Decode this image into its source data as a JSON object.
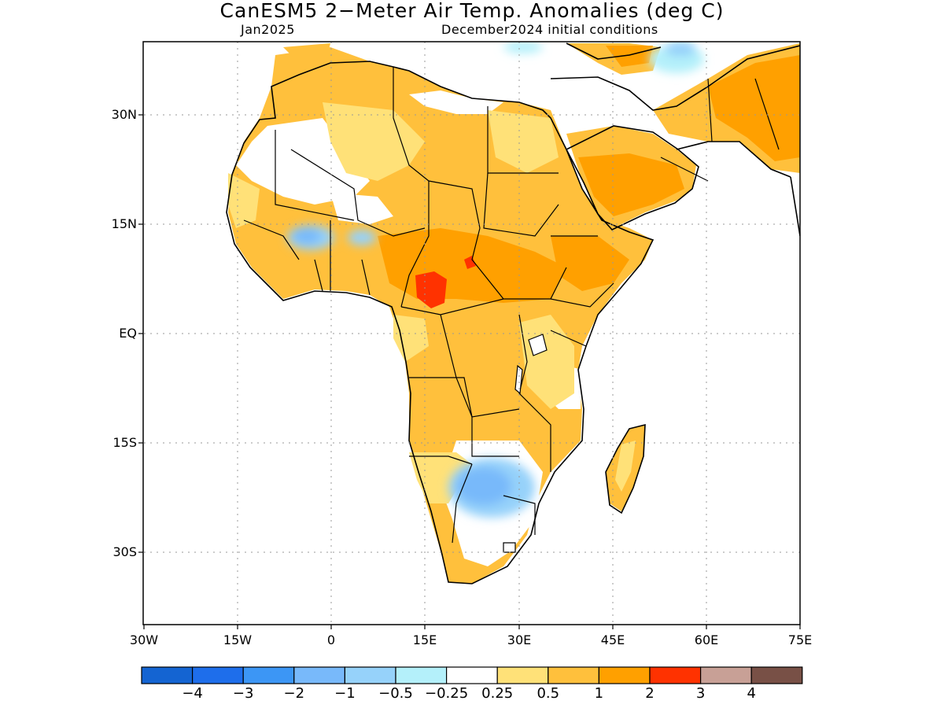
{
  "title": "CanESM5 2−Meter Air Temp. Anomalies (deg C)",
  "subtitle_left": "Jan2025",
  "subtitle_right": "December2024 initial conditions",
  "lat_labels": [
    "30N",
    "15N",
    "EQ",
    "15S",
    "30S"
  ],
  "lon_labels": [
    "30W",
    "15W",
    "0",
    "15E",
    "30E",
    "45E",
    "60E",
    "75E"
  ],
  "colorbar": {
    "colors": [
      "#1464d2",
      "#1e6eeb",
      "#3c96f5",
      "#78b9fa",
      "#96d2fa",
      "#b4f0fa",
      "#ffffff",
      "#ffe178",
      "#ffc03c",
      "#ffa000",
      "#ff3200",
      "#c8a096",
      "#785046"
    ],
    "labels": [
      "−4",
      "−3",
      "−2",
      "−1",
      "−0.5",
      "−0.25",
      "0.25",
      "0.5",
      "1",
      "2",
      "3",
      "4"
    ]
  }
}
